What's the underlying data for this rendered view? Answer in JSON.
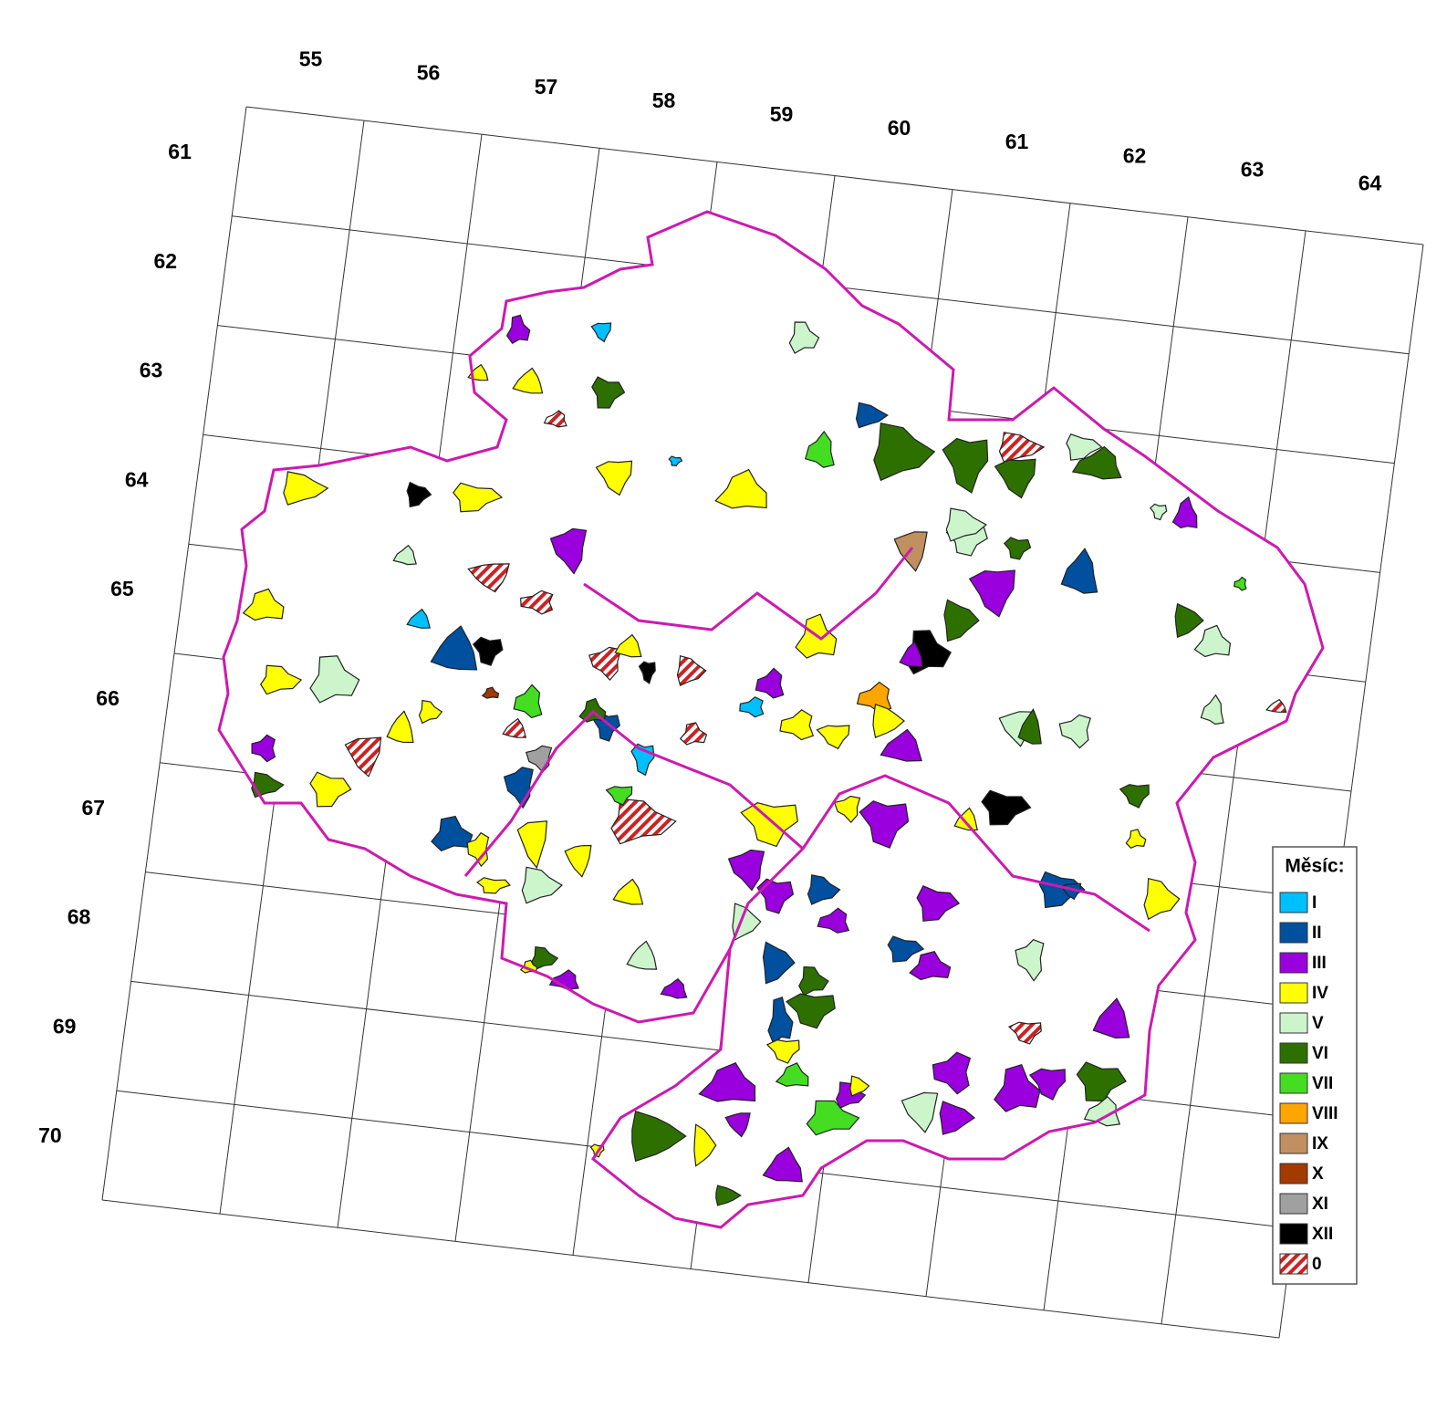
{
  "map": {
    "column_labels": [
      "55",
      "56",
      "57",
      "58",
      "59",
      "60",
      "61",
      "62",
      "63",
      "64"
    ],
    "row_labels": [
      "61",
      "62",
      "63",
      "64",
      "65",
      "66",
      "67",
      "68",
      "69",
      "70"
    ],
    "legend": {
      "title": "Měsíc:",
      "items": [
        {
          "label": "I",
          "color": "#00bfff"
        },
        {
          "label": "II",
          "color": "#0050a0"
        },
        {
          "label": "III",
          "color": "#9900dd"
        },
        {
          "label": "IV",
          "color": "#ffff00"
        },
        {
          "label": "V",
          "color": "#ccf5cc"
        },
        {
          "label": "VI",
          "color": "#2e7000"
        },
        {
          "label": "VII",
          "color": "#44dd22"
        },
        {
          "label": "VIII",
          "color": "#ffa500"
        },
        {
          "label": "IX",
          "color": "#c09060"
        },
        {
          "label": "X",
          "color": "#a33a00"
        },
        {
          "label": "XI",
          "color": "#a0a0a0"
        },
        {
          "label": "XII",
          "color": "#000000"
        },
        {
          "label": "0",
          "color": "#cc2222",
          "hatched": true
        }
      ]
    }
  }
}
